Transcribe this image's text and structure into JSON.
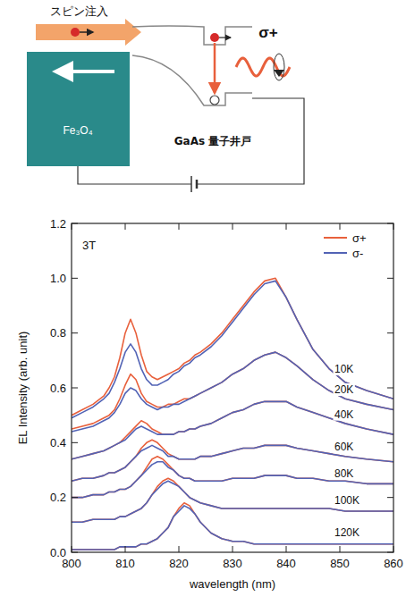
{
  "diagram": {
    "spin_injection": "スピン注入",
    "electrode": "Fe₃O₄",
    "quantum_well": "GaAs 量子井戸",
    "emission": "σ+"
  },
  "chart_data": {
    "type": "line",
    "x_label": "wavelength (nm)",
    "y_label": "EL Intensity (arb. unit)",
    "annotations": [
      {
        "text": "3T",
        "x": 802,
        "y": 1.12
      },
      {
        "text": "10K",
        "x": 849,
        "y": 0.67
      },
      {
        "text": "20K",
        "x": 849,
        "y": 0.595
      },
      {
        "text": "40K",
        "x": 849,
        "y": 0.505
      },
      {
        "text": "60K",
        "x": 849,
        "y": 0.385
      },
      {
        "text": "80K",
        "x": 849,
        "y": 0.29
      },
      {
        "text": "100K",
        "x": 849,
        "y": 0.19
      },
      {
        "text": "120K",
        "x": 849,
        "y": 0.075
      }
    ],
    "xlim": [
      800,
      860
    ],
    "xticks": [
      800,
      810,
      820,
      830,
      840,
      850,
      860
    ],
    "ylim": [
      0,
      1.2
    ],
    "yticks": [
      {
        "value": 0,
        "label": "0.0"
      },
      0.2,
      0.4,
      0.6,
      0.8,
      {
        "value": 1,
        "label": "1.0"
      },
      1.2
    ],
    "grid": false,
    "legend": "top-right",
    "x": [
      800,
      802,
      804,
      806,
      807,
      808,
      809,
      810,
      811,
      812,
      813,
      814,
      815,
      816,
      817,
      818,
      819,
      820,
      821,
      822,
      823,
      824,
      826,
      828,
      830,
      832,
      834,
      836,
      838,
      840,
      842,
      845,
      848,
      851,
      855,
      860
    ],
    "series": [
      {
        "name": "σ+",
        "color": "#e8603c",
        "values": [
          0.5,
          0.52,
          0.54,
          0.57,
          0.6,
          0.64,
          0.71,
          0.8,
          0.85,
          0.8,
          0.72,
          0.66,
          0.64,
          0.63,
          0.64,
          0.65,
          0.66,
          0.67,
          0.69,
          0.7,
          0.72,
          0.73,
          0.76,
          0.8,
          0.85,
          0.9,
          0.95,
          0.99,
          1.0,
          0.93,
          0.85,
          0.74,
          0.67,
          0.62,
          0.59,
          0.56
        ]
      },
      {
        "name": "σ-",
        "color": "#5263b5",
        "values": [
          0.49,
          0.51,
          0.53,
          0.56,
          0.58,
          0.62,
          0.67,
          0.73,
          0.76,
          0.73,
          0.67,
          0.63,
          0.61,
          0.61,
          0.62,
          0.63,
          0.65,
          0.66,
          0.68,
          0.69,
          0.71,
          0.72,
          0.75,
          0.79,
          0.84,
          0.89,
          0.94,
          0.98,
          0.99,
          0.93,
          0.85,
          0.74,
          0.67,
          0.62,
          0.59,
          0.56
        ]
      },
      {
        "name": "σ+",
        "color": "#e8603c",
        "values": [
          0.45,
          0.46,
          0.47,
          0.49,
          0.5,
          0.52,
          0.56,
          0.61,
          0.65,
          0.63,
          0.58,
          0.55,
          0.54,
          0.53,
          0.53,
          0.54,
          0.54,
          0.55,
          0.56,
          0.56,
          0.57,
          0.58,
          0.6,
          0.62,
          0.65,
          0.67,
          0.7,
          0.72,
          0.73,
          0.71,
          0.68,
          0.63,
          0.59,
          0.56,
          0.54,
          0.52
        ]
      },
      {
        "name": "σ-",
        "color": "#5263b5",
        "values": [
          0.44,
          0.45,
          0.46,
          0.48,
          0.49,
          0.51,
          0.54,
          0.58,
          0.6,
          0.59,
          0.56,
          0.54,
          0.53,
          0.52,
          0.53,
          0.53,
          0.54,
          0.54,
          0.55,
          0.56,
          0.57,
          0.58,
          0.6,
          0.62,
          0.65,
          0.67,
          0.7,
          0.72,
          0.73,
          0.71,
          0.68,
          0.63,
          0.59,
          0.56,
          0.54,
          0.52
        ]
      },
      {
        "name": "σ+",
        "color": "#e8603c",
        "values": [
          0.34,
          0.35,
          0.36,
          0.37,
          0.38,
          0.39,
          0.4,
          0.42,
          0.44,
          0.46,
          0.48,
          0.47,
          0.45,
          0.44,
          0.43,
          0.43,
          0.43,
          0.44,
          0.44,
          0.45,
          0.45,
          0.46,
          0.47,
          0.49,
          0.51,
          0.52,
          0.54,
          0.55,
          0.55,
          0.55,
          0.53,
          0.51,
          0.49,
          0.47,
          0.45,
          0.43
        ]
      },
      {
        "name": "σ-",
        "color": "#5263b5",
        "values": [
          0.34,
          0.35,
          0.36,
          0.37,
          0.38,
          0.39,
          0.4,
          0.41,
          0.43,
          0.45,
          0.46,
          0.45,
          0.44,
          0.43,
          0.43,
          0.43,
          0.43,
          0.44,
          0.44,
          0.45,
          0.45,
          0.46,
          0.47,
          0.49,
          0.51,
          0.52,
          0.54,
          0.55,
          0.55,
          0.55,
          0.53,
          0.51,
          0.49,
          0.47,
          0.45,
          0.43
        ]
      },
      {
        "name": "σ+",
        "color": "#e8603c",
        "values": [
          0.26,
          0.27,
          0.27,
          0.28,
          0.29,
          0.29,
          0.3,
          0.31,
          0.33,
          0.35,
          0.38,
          0.4,
          0.41,
          0.4,
          0.38,
          0.36,
          0.35,
          0.34,
          0.34,
          0.34,
          0.34,
          0.35,
          0.35,
          0.36,
          0.37,
          0.38,
          0.38,
          0.39,
          0.39,
          0.39,
          0.38,
          0.37,
          0.36,
          0.35,
          0.34,
          0.33
        ]
      },
      {
        "name": "σ-",
        "color": "#5263b5",
        "values": [
          0.26,
          0.27,
          0.27,
          0.28,
          0.29,
          0.29,
          0.3,
          0.31,
          0.33,
          0.35,
          0.37,
          0.38,
          0.39,
          0.38,
          0.37,
          0.35,
          0.35,
          0.34,
          0.34,
          0.34,
          0.34,
          0.35,
          0.35,
          0.36,
          0.37,
          0.38,
          0.38,
          0.39,
          0.39,
          0.39,
          0.38,
          0.37,
          0.36,
          0.35,
          0.34,
          0.33
        ]
      },
      {
        "name": "σ+",
        "color": "#e8603c",
        "values": [
          0.2,
          0.2,
          0.21,
          0.21,
          0.22,
          0.22,
          0.23,
          0.23,
          0.24,
          0.26,
          0.28,
          0.31,
          0.34,
          0.35,
          0.34,
          0.32,
          0.3,
          0.28,
          0.27,
          0.27,
          0.26,
          0.26,
          0.26,
          0.26,
          0.27,
          0.27,
          0.27,
          0.28,
          0.28,
          0.28,
          0.27,
          0.27,
          0.26,
          0.26,
          0.25,
          0.25
        ]
      },
      {
        "name": "σ-",
        "color": "#5263b5",
        "values": [
          0.2,
          0.2,
          0.21,
          0.21,
          0.22,
          0.22,
          0.23,
          0.23,
          0.24,
          0.26,
          0.28,
          0.3,
          0.32,
          0.33,
          0.33,
          0.31,
          0.3,
          0.28,
          0.27,
          0.27,
          0.26,
          0.26,
          0.26,
          0.26,
          0.27,
          0.27,
          0.27,
          0.28,
          0.28,
          0.28,
          0.27,
          0.27,
          0.26,
          0.26,
          0.25,
          0.25
        ]
      },
      {
        "name": "σ+",
        "color": "#e8603c",
        "values": [
          0.11,
          0.11,
          0.12,
          0.12,
          0.12,
          0.12,
          0.13,
          0.13,
          0.14,
          0.15,
          0.16,
          0.18,
          0.21,
          0.24,
          0.26,
          0.27,
          0.26,
          0.24,
          0.22,
          0.2,
          0.19,
          0.18,
          0.17,
          0.16,
          0.16,
          0.16,
          0.16,
          0.16,
          0.16,
          0.16,
          0.16,
          0.16,
          0.16,
          0.15,
          0.15,
          0.15
        ]
      },
      {
        "name": "σ-",
        "color": "#5263b5",
        "values": [
          0.11,
          0.11,
          0.12,
          0.12,
          0.12,
          0.12,
          0.13,
          0.13,
          0.14,
          0.15,
          0.16,
          0.18,
          0.21,
          0.23,
          0.25,
          0.26,
          0.25,
          0.24,
          0.22,
          0.2,
          0.19,
          0.18,
          0.17,
          0.16,
          0.16,
          0.16,
          0.16,
          0.16,
          0.16,
          0.16,
          0.16,
          0.16,
          0.16,
          0.15,
          0.15,
          0.15
        ]
      },
      {
        "name": "σ+",
        "color": "#e8603c",
        "values": [
          0.01,
          0.01,
          0.01,
          0.01,
          0.01,
          0.01,
          0.02,
          0.02,
          0.02,
          0.02,
          0.03,
          0.03,
          0.04,
          0.05,
          0.07,
          0.09,
          0.13,
          0.16,
          0.18,
          0.17,
          0.14,
          0.11,
          0.07,
          0.05,
          0.04,
          0.04,
          0.03,
          0.03,
          0.03,
          0.03,
          0.03,
          0.03,
          0.03,
          0.03,
          0.03,
          0.03
        ]
      },
      {
        "name": "σ-",
        "color": "#5263b5",
        "values": [
          0.01,
          0.01,
          0.01,
          0.01,
          0.01,
          0.01,
          0.02,
          0.02,
          0.02,
          0.02,
          0.03,
          0.03,
          0.04,
          0.05,
          0.07,
          0.09,
          0.13,
          0.15,
          0.17,
          0.16,
          0.14,
          0.11,
          0.07,
          0.05,
          0.04,
          0.04,
          0.03,
          0.03,
          0.03,
          0.03,
          0.03,
          0.03,
          0.03,
          0.03,
          0.03,
          0.03
        ]
      }
    ]
  }
}
